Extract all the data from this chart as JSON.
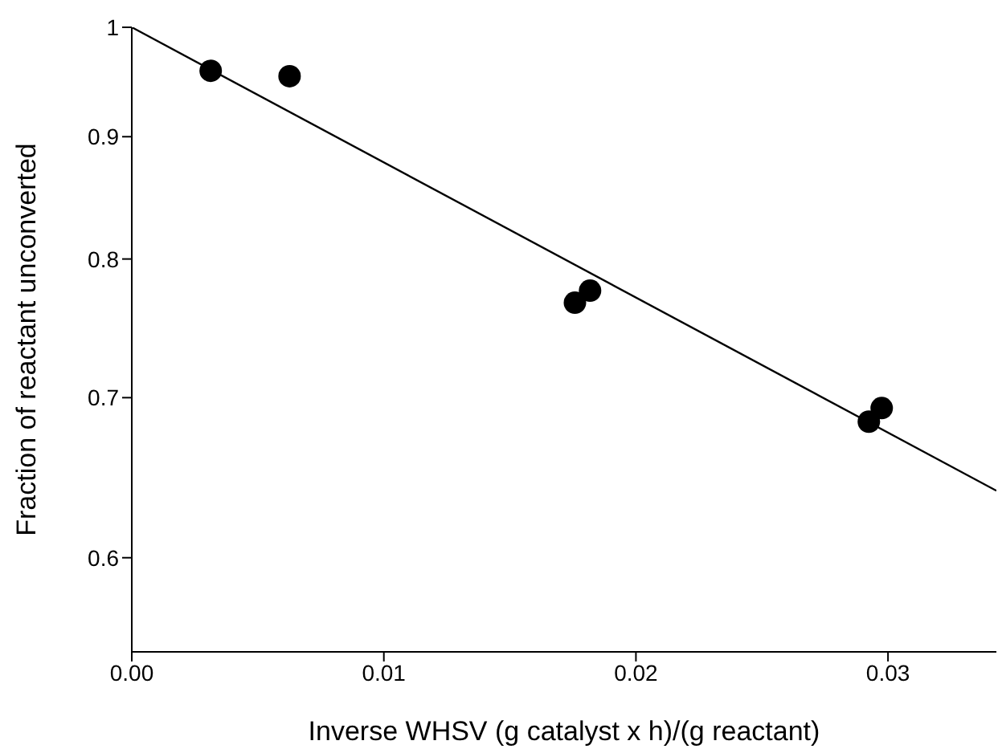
{
  "chart_data": {
    "type": "scatter",
    "xlabel": "Inverse WHSV (g catalyst x h)/(g reactant)",
    "ylabel": "Fraction of reactant unconverted",
    "log": "y",
    "xlim": [
      0,
      0.0343
    ],
    "xticks": [
      {
        "value": 0,
        "label": "0.00"
      },
      {
        "value": 0.01,
        "label": "0.01"
      },
      {
        "value": 0.02,
        "label": "0.02"
      },
      {
        "value": 0.03,
        "label": "0.03"
      }
    ],
    "ylim": [
      0.548,
      1
    ],
    "yticks": [
      0.6,
      0.7,
      0.8,
      0.9,
      1
    ],
    "marker": "circle",
    "series": [
      {
        "color": "#000000",
        "x": [
          0.00313,
          0.00626,
          0.01758,
          0.01818,
          0.02924,
          0.02975
        ],
        "values": [
          0.959,
          0.954,
          0.767,
          0.776,
          0.684,
          0.693
        ]
      },
      {
        "type": "line",
        "color": "#000000",
        "marker": "none",
        "line_style": "solid",
        "x": [
          0,
          0.0343
        ],
        "values": [
          1,
          0.64
        ]
      }
    ]
  }
}
